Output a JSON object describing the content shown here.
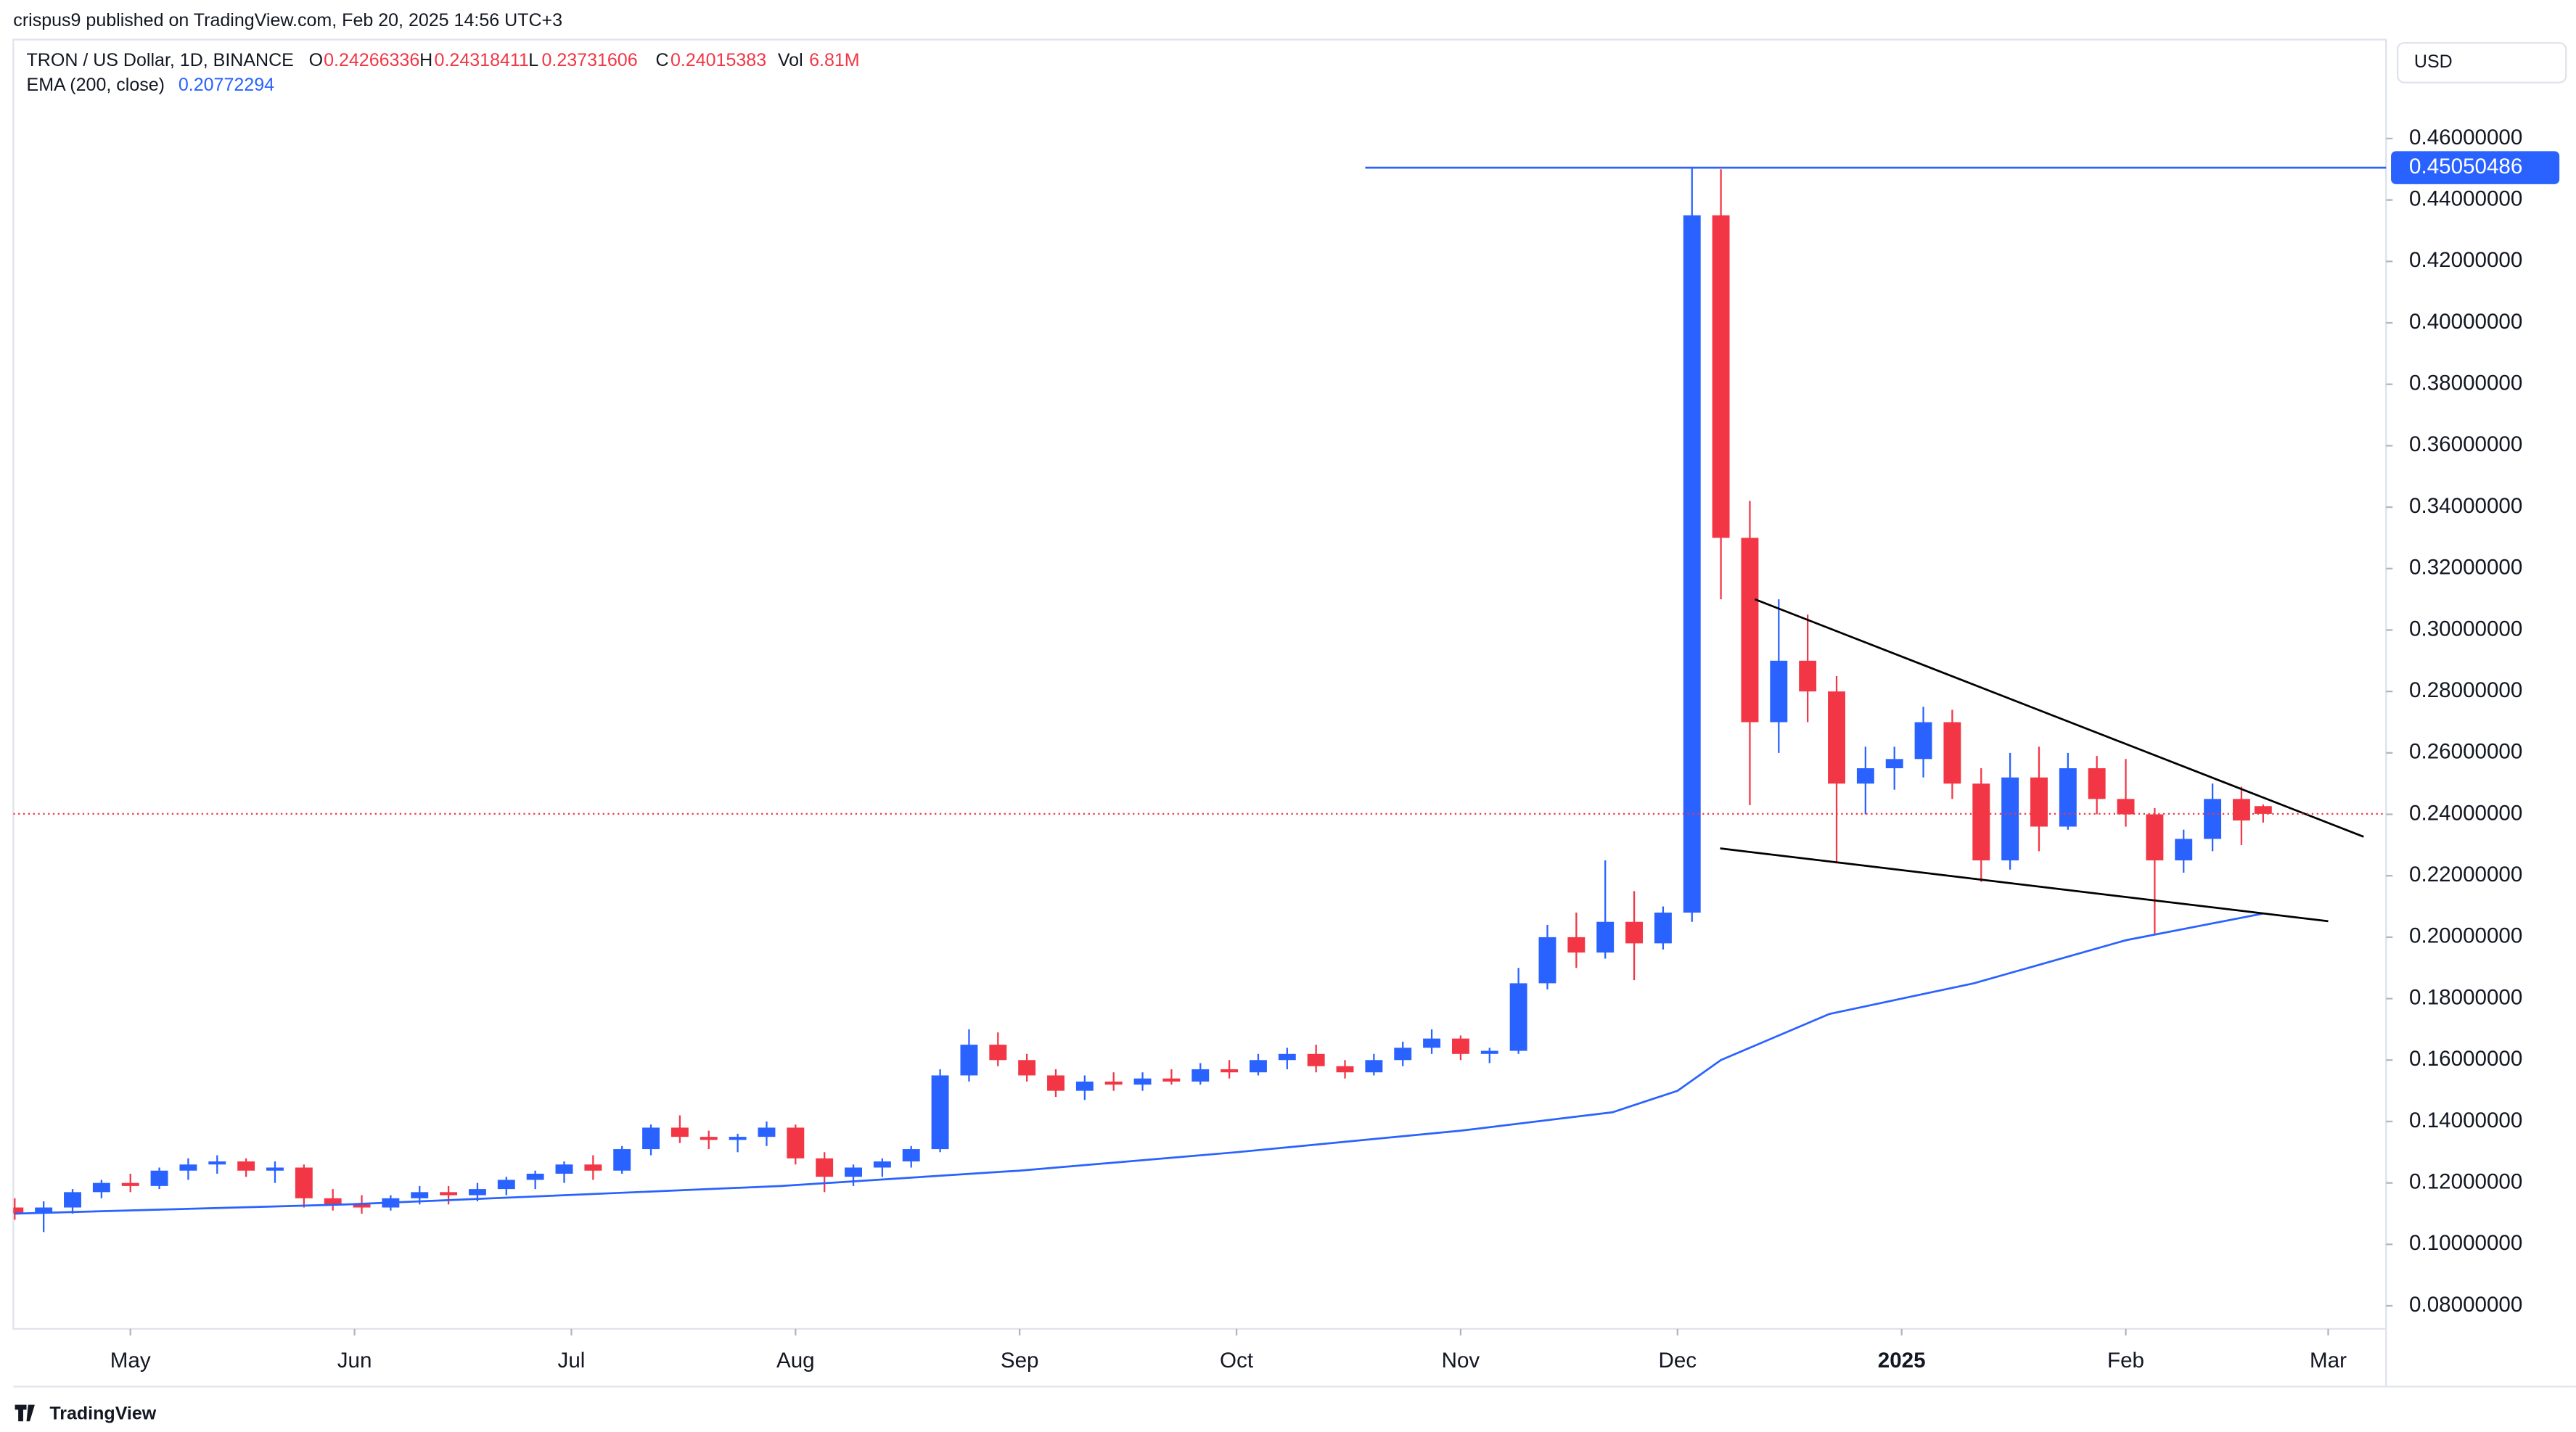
{
  "header": {
    "publisher": "crispus9 published on TradingView.com, Feb 20, 2025 14:56 UTC+3",
    "symbol": "TRON / US Dollar, 1D, BINANCE",
    "o_label": "O",
    "open": 0.24266336,
    "h_label": "H",
    "high": 0.24318411,
    "l_label": "L",
    "low": 0.23731606,
    "c_label": "C",
    "close": 0.24015383,
    "vol_label": "Vol",
    "volume": "6.81M",
    "ema_label": "EMA (200, close)",
    "ema_value": 0.20772294,
    "currency": "USD",
    "brand": "TradingView"
  },
  "chart_data": {
    "type": "candlestick",
    "up_color": "#2962ff",
    "down_color": "#f23645",
    "grid": false,
    "x": [
      14,
      18,
      22,
      26,
      30,
      34,
      38,
      42,
      46,
      50,
      54,
      58,
      62,
      66,
      70,
      74,
      78,
      82,
      86,
      90,
      94,
      98,
      102,
      106,
      110,
      114,
      118,
      122,
      126,
      130,
      134,
      138,
      142,
      146,
      150,
      154,
      158,
      162,
      166,
      170,
      174,
      178,
      182,
      186,
      190,
      194,
      198,
      202,
      206,
      210,
      214,
      218,
      222,
      226,
      230,
      234,
      238,
      242,
      246,
      250,
      254,
      258,
      262,
      266,
      270,
      274,
      278,
      282,
      286,
      290,
      294,
      298,
      302,
      306,
      310,
      314,
      318,
      322,
      325
    ],
    "open": [
      0.112,
      0.11,
      0.112,
      0.117,
      0.12,
      0.119,
      0.124,
      0.126,
      0.127,
      0.124,
      0.125,
      0.115,
      0.113,
      0.112,
      0.115,
      0.117,
      0.116,
      0.118,
      0.121,
      0.123,
      0.126,
      0.124,
      0.131,
      0.138,
      0.135,
      0.134,
      0.135,
      0.138,
      0.128,
      0.122,
      0.125,
      0.127,
      0.131,
      0.155,
      0.165,
      0.16,
      0.155,
      0.15,
      0.153,
      0.152,
      0.154,
      0.153,
      0.157,
      0.156,
      0.16,
      0.162,
      0.158,
      0.156,
      0.16,
      0.164,
      0.167,
      0.162,
      0.163,
      0.185,
      0.2,
      0.195,
      0.205,
      0.198,
      0.208,
      0.435,
      0.33,
      0.27,
      0.29,
      0.28,
      0.25,
      0.255,
      0.258,
      0.27,
      0.25,
      0.225,
      0.252,
      0.236,
      0.255,
      0.245,
      0.24,
      0.225,
      0.232,
      0.245,
      0.24266336
    ],
    "high": [
      0.115,
      0.114,
      0.118,
      0.121,
      0.123,
      0.125,
      0.128,
      0.129,
      0.128,
      0.127,
      0.126,
      0.118,
      0.116,
      0.116,
      0.119,
      0.119,
      0.12,
      0.122,
      0.124,
      0.127,
      0.129,
      0.132,
      0.139,
      0.142,
      0.137,
      0.136,
      0.14,
      0.139,
      0.13,
      0.126,
      0.128,
      0.132,
      0.157,
      0.17,
      0.169,
      0.162,
      0.157,
      0.155,
      0.156,
      0.156,
      0.157,
      0.159,
      0.16,
      0.162,
      0.164,
      0.165,
      0.16,
      0.162,
      0.166,
      0.17,
      0.168,
      0.164,
      0.19,
      0.204,
      0.208,
      0.225,
      0.215,
      0.21,
      0.4505,
      0.45,
      0.342,
      0.31,
      0.305,
      0.285,
      0.262,
      0.262,
      0.275,
      0.274,
      0.255,
      0.26,
      0.262,
      0.26,
      0.259,
      0.258,
      0.242,
      0.235,
      0.25,
      0.249,
      0.24318411
    ],
    "low": [
      0.108,
      0.104,
      0.11,
      0.115,
      0.117,
      0.118,
      0.121,
      0.123,
      0.122,
      0.12,
      0.112,
      0.111,
      0.11,
      0.111,
      0.113,
      0.113,
      0.114,
      0.116,
      0.118,
      0.12,
      0.121,
      0.123,
      0.129,
      0.133,
      0.131,
      0.13,
      0.132,
      0.126,
      0.117,
      0.119,
      0.122,
      0.125,
      0.13,
      0.153,
      0.158,
      0.153,
      0.148,
      0.147,
      0.15,
      0.15,
      0.152,
      0.152,
      0.154,
      0.155,
      0.157,
      0.156,
      0.154,
      0.155,
      0.158,
      0.162,
      0.16,
      0.159,
      0.162,
      0.183,
      0.19,
      0.193,
      0.186,
      0.196,
      0.205,
      0.31,
      0.243,
      0.26,
      0.27,
      0.224,
      0.24,
      0.248,
      0.252,
      0.245,
      0.218,
      0.222,
      0.228,
      0.235,
      0.24,
      0.236,
      0.201,
      0.221,
      0.228,
      0.23,
      0.23731606
    ],
    "close": [
      0.11,
      0.112,
      0.117,
      0.12,
      0.119,
      0.124,
      0.126,
      0.127,
      0.124,
      0.125,
      0.115,
      0.113,
      0.112,
      0.115,
      0.117,
      0.116,
      0.118,
      0.121,
      0.123,
      0.126,
      0.124,
      0.131,
      0.138,
      0.135,
      0.134,
      0.135,
      0.138,
      0.128,
      0.122,
      0.125,
      0.127,
      0.131,
      0.155,
      0.165,
      0.16,
      0.155,
      0.15,
      0.153,
      0.152,
      0.154,
      0.153,
      0.157,
      0.156,
      0.16,
      0.162,
      0.158,
      0.156,
      0.16,
      0.164,
      0.167,
      0.162,
      0.163,
      0.185,
      0.2,
      0.195,
      0.205,
      0.198,
      0.208,
      0.435,
      0.33,
      0.27,
      0.29,
      0.28,
      0.25,
      0.255,
      0.258,
      0.27,
      0.25,
      0.225,
      0.252,
      0.236,
      0.255,
      0.245,
      0.24,
      0.225,
      0.232,
      0.245,
      0.238,
      0.24015383
    ],
    "ema": {
      "name": "EMA (200, close)",
      "color": "#2962ff",
      "x": [
        14,
        60,
        120,
        153,
        183,
        214,
        235,
        244,
        250,
        265,
        285,
        306,
        325
      ],
      "values": [
        0.11,
        0.113,
        0.119,
        0.124,
        0.13,
        0.137,
        0.143,
        0.15,
        0.16,
        0.175,
        0.185,
        0.199,
        0.2077
      ]
    },
    "trendlines": [
      {
        "color": "#000000",
        "x": [
          254.7,
          338.9
        ],
        "y": [
          0.31,
          0.2327
        ]
      },
      {
        "color": "#000000",
        "x": [
          249.9,
          334
        ],
        "y": [
          0.2289,
          0.2052
        ]
      }
    ],
    "hline": {
      "color": "#2962ff",
      "x": 200.8,
      "value": 0.45050486
    },
    "last_price": {
      "color": "#f23645",
      "value": 0.24015383
    },
    "xlim": [
      13.8,
      342
    ],
    "xticks": [
      {
        "value": 30,
        "label": "May"
      },
      {
        "value": 61,
        "label": "Jun"
      },
      {
        "value": 91,
        "label": "Jul"
      },
      {
        "value": 122,
        "label": "Aug"
      },
      {
        "value": 153,
        "label": "Sep"
      },
      {
        "value": 183,
        "label": "Oct"
      },
      {
        "value": 214,
        "label": "Nov"
      },
      {
        "value": 244,
        "label": "Dec"
      },
      {
        "value": 275,
        "label": "2025"
      },
      {
        "value": 306,
        "label": "Feb"
      },
      {
        "value": 334,
        "label": "Mar"
      }
    ],
    "ylim": [
      0.0725,
      0.4922
    ],
    "yticks": [
      {
        "value": 0.08,
        "label": "0.08000000"
      },
      {
        "value": 0.1,
        "label": "0.10000000"
      },
      {
        "value": 0.12,
        "label": "0.12000000"
      },
      {
        "value": 0.14,
        "label": "0.14000000"
      },
      {
        "value": 0.16,
        "label": "0.16000000"
      },
      {
        "value": 0.18,
        "label": "0.18000000"
      },
      {
        "value": 0.2,
        "label": "0.20000000"
      },
      {
        "value": 0.22,
        "label": "0.22000000"
      },
      {
        "value": 0.24,
        "label": "0.24000000"
      },
      {
        "value": 0.26,
        "label": "0.26000000"
      },
      {
        "value": 0.28,
        "label": "0.28000000"
      },
      {
        "value": 0.3,
        "label": "0.30000000"
      },
      {
        "value": 0.32,
        "label": "0.32000000"
      },
      {
        "value": 0.34,
        "label": "0.34000000"
      },
      {
        "value": 0.36,
        "label": "0.36000000"
      },
      {
        "value": 0.38,
        "label": "0.38000000"
      },
      {
        "value": 0.4,
        "label": "0.40000000"
      },
      {
        "value": 0.42,
        "label": "0.42000000"
      },
      {
        "value": 0.44,
        "label": "0.44000000"
      },
      {
        "value": 0.46,
        "label": "0.46000000"
      }
    ]
  }
}
